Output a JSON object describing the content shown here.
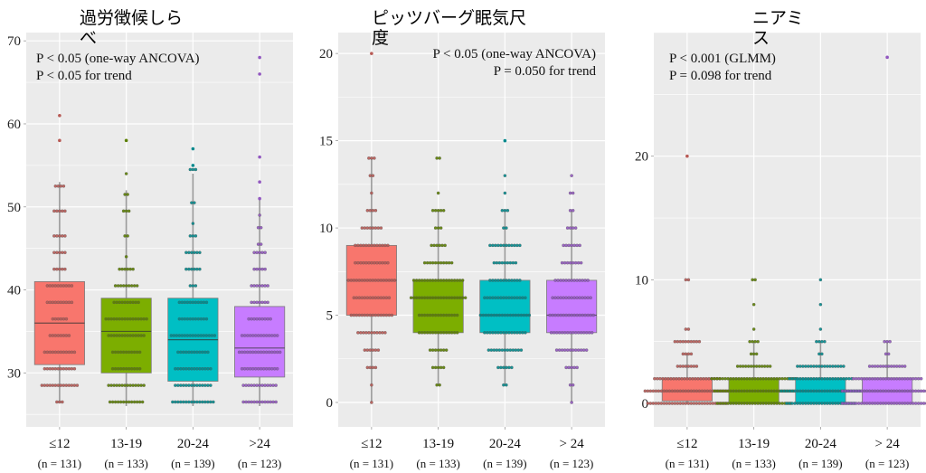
{
  "figure": {
    "x_categories": [
      "≤12",
      "13-19",
      "20-24",
      ">24"
    ],
    "x_categories_alt": [
      "≤12",
      "13-19",
      "20-24",
      "> 24"
    ],
    "group_n": [
      "(n = 131)",
      "(n = 133)",
      "(n = 139)",
      "(n = 123)"
    ],
    "colors": [
      "#F8766D",
      "#7CAE00",
      "#00BFC4",
      "#C77CFF"
    ],
    "dot_colors": [
      "#b85a55",
      "#5c8000",
      "#00898d",
      "#9258c0"
    ]
  },
  "chart_data": [
    {
      "type": "box",
      "title_lines": [
        "過労徴候しら",
        "べ"
      ],
      "annotations": [
        "P < 0.05 (one-way ANCOVA)",
        "P < 0.05 for trend"
      ],
      "annotation_align": "left",
      "categories": [
        "≤12",
        "13-19",
        "20-24",
        ">24"
      ],
      "ylim": [
        23.5,
        71
      ],
      "yticks": [
        30,
        40,
        50,
        60,
        70
      ],
      "tick_labels": [
        "30",
        "40",
        "50",
        "60",
        "70"
      ],
      "grid": true,
      "series": [
        {
          "name": "≤12",
          "n": 131,
          "q1": 31,
          "median": 36,
          "q3": 41,
          "whisker_low": 26.5,
          "whisker_high": 53,
          "dot_rows": [
            [
              26.5,
              3
            ],
            [
              28.5,
              14
            ],
            [
              30.5,
              12
            ],
            [
              32.5,
              12
            ],
            [
              34.5,
              8
            ],
            [
              36.5,
              6
            ],
            [
              38.5,
              10
            ],
            [
              40.5,
              10
            ],
            [
              42.5,
              5
            ],
            [
              44.5,
              5
            ],
            [
              46.5,
              5
            ],
            [
              49.5,
              5
            ],
            [
              52.5,
              4
            ]
          ],
          "outliers": [
            58,
            61
          ]
        },
        {
          "name": "13-19",
          "n": 133,
          "q1": 30,
          "median": 35,
          "q3": 39,
          "whisker_low": 26,
          "whisker_high": 52,
          "dot_rows": [
            [
              26.5,
              13
            ],
            [
              28.5,
              14
            ],
            [
              30.5,
              11
            ],
            [
              32.5,
              11
            ],
            [
              34.5,
              14
            ],
            [
              36.5,
              16
            ],
            [
              38.5,
              10
            ],
            [
              40.5,
              9
            ],
            [
              42.5,
              6
            ],
            [
              44,
              1
            ],
            [
              46.5,
              2
            ],
            [
              49.5,
              3
            ],
            [
              51.5,
              2
            ],
            [
              54,
              1
            ]
          ],
          "outliers": [
            58
          ]
        },
        {
          "name": "20-24",
          "n": 139,
          "q1": 29,
          "median": 34,
          "q3": 39,
          "whisker_low": 26,
          "whisker_high": 54,
          "dot_rows": [
            [
              26.5,
              16
            ],
            [
              28.5,
              14
            ],
            [
              30.5,
              14
            ],
            [
              32.5,
              12
            ],
            [
              34.5,
              17
            ],
            [
              36.5,
              11
            ],
            [
              38.5,
              11
            ],
            [
              40.5,
              3
            ],
            [
              42.5,
              6
            ],
            [
              44.5,
              6
            ],
            [
              46.5,
              3
            ],
            [
              48,
              1
            ],
            [
              50.5,
              2
            ],
            [
              54.5,
              3
            ]
          ],
          "outliers": [
            55,
            57
          ]
        },
        {
          "name": ">24",
          "n": 123,
          "q1": 29.5,
          "median": 33,
          "q3": 38,
          "whisker_low": 26,
          "whisker_high": 51,
          "dot_rows": [
            [
              26.5,
              13
            ],
            [
              28.5,
              13
            ],
            [
              30.5,
              14
            ],
            [
              32.5,
              16
            ],
            [
              34.5,
              14
            ],
            [
              36.5,
              9
            ],
            [
              38.5,
              7
            ],
            [
              40.5,
              7
            ],
            [
              42.5,
              5
            ],
            [
              44.5,
              5
            ],
            [
              45.5,
              2
            ],
            [
              47.5,
              2
            ],
            [
              49,
              1
            ]
          ],
          "outliers": [
            51,
            53,
            56,
            66,
            68
          ]
        }
      ]
    },
    {
      "type": "box",
      "title_lines": [
        "ピッツバーグ眠気尺",
        "度"
      ],
      "annotations": [
        "P < 0.05 (one-way ANCOVA)",
        "P = 0.050 for trend"
      ],
      "annotation_align": "right",
      "categories": [
        "≤12",
        "13-19",
        "20-24",
        "> 24"
      ],
      "ylim": [
        -1.4,
        21.2
      ],
      "yticks": [
        0,
        5,
        10,
        15,
        20
      ],
      "tick_labels": [
        "0",
        "5",
        "10",
        "15",
        "20"
      ],
      "grid": true,
      "series": [
        {
          "name": "≤12",
          "n": 131,
          "q1": 5,
          "median": 7,
          "q3": 9,
          "whisker_low": 0,
          "whisker_high": 14,
          "dot_rows": [
            [
              0,
              1
            ],
            [
              1,
              1
            ],
            [
              2,
              4
            ],
            [
              3,
              6
            ],
            [
              4,
              11
            ],
            [
              5,
              16
            ],
            [
              6,
              14
            ],
            [
              7,
              18
            ],
            [
              8,
              13
            ],
            [
              9,
              13
            ],
            [
              10,
              8
            ],
            [
              11,
              4
            ],
            [
              12,
              1
            ],
            [
              13,
              2
            ],
            [
              14,
              3
            ]
          ],
          "outliers": [
            20
          ]
        },
        {
          "name": "13-19",
          "n": 133,
          "q1": 4,
          "median": 6,
          "q3": 7,
          "whisker_low": 1,
          "whisker_high": 11,
          "dot_rows": [
            [
              1,
              2
            ],
            [
              2,
              5
            ],
            [
              3,
              7
            ],
            [
              4,
              15
            ],
            [
              5,
              15
            ],
            [
              6,
              21
            ],
            [
              7,
              19
            ],
            [
              8,
              11
            ],
            [
              9,
              6
            ],
            [
              10,
              3
            ],
            [
              11,
              5
            ],
            [
              12,
              1
            ],
            [
              14,
              2
            ]
          ],
          "outliers": []
        },
        {
          "name": "20-24",
          "n": 139,
          "q1": 4,
          "median": 5,
          "q3": 7,
          "whisker_low": 1,
          "whisker_high": 11,
          "dot_rows": [
            [
              1,
              2
            ],
            [
              2,
              6
            ],
            [
              3,
              13
            ],
            [
              4,
              16
            ],
            [
              5,
              19
            ],
            [
              6,
              16
            ],
            [
              7,
              12
            ],
            [
              8,
              9
            ],
            [
              9,
              12
            ],
            [
              10,
              2
            ],
            [
              11,
              3
            ],
            [
              12,
              1
            ],
            [
              13,
              1
            ]
          ],
          "outliers": [
            15
          ]
        },
        {
          "name": "> 24",
          "n": 123,
          "q1": 4,
          "median": 5,
          "q3": 7,
          "whisker_low": 0,
          "whisker_high": 11,
          "dot_rows": [
            [
              0,
              1
            ],
            [
              1,
              2
            ],
            [
              2,
              5
            ],
            [
              3,
              12
            ],
            [
              4,
              16
            ],
            [
              5,
              17
            ],
            [
              6,
              15
            ],
            [
              7,
              13
            ],
            [
              8,
              8
            ],
            [
              9,
              7
            ],
            [
              10,
              4
            ],
            [
              11,
              2
            ],
            [
              12,
              2
            ],
            [
              13,
              1
            ]
          ],
          "outliers": []
        }
      ]
    },
    {
      "type": "box",
      "title_lines": [
        "ニアミ",
        "ス"
      ],
      "annotations": [
        "P < 0.001 (GLMM)",
        "P = 0.098 for trend"
      ],
      "annotation_align": "left",
      "categories": [
        "≤12",
        "13-19",
        "20-24",
        "> 24"
      ],
      "ylim": [
        -1.9,
        30
      ],
      "yticks": [
        0,
        10,
        20
      ],
      "tick_labels": [
        "0",
        "10",
        "20"
      ],
      "grid": true,
      "series": [
        {
          "name": "≤12",
          "n": 131,
          "q1": 0.2,
          "median": 1,
          "q3": 2,
          "whisker_low": 0,
          "whisker_high": 4,
          "dot_rows": [
            [
              0,
              30
            ],
            [
              1,
              32
            ],
            [
              2,
              25
            ],
            [
              3,
              8
            ],
            [
              4,
              4
            ],
            [
              5,
              10
            ],
            [
              6,
              2
            ],
            [
              10,
              2
            ]
          ],
          "outliers": [
            20
          ]
        },
        {
          "name": "13-19",
          "n": 133,
          "q1": 0,
          "median": 1,
          "q3": 2,
          "whisker_low": 0,
          "whisker_high": 5,
          "dot_rows": [
            [
              0,
              28
            ],
            [
              1,
              30
            ],
            [
              2,
              32
            ],
            [
              3,
              13
            ],
            [
              4,
              3
            ],
            [
              5,
              4
            ],
            [
              6,
              1
            ],
            [
              8,
              1
            ],
            [
              10,
              2
            ]
          ],
          "outliers": []
        },
        {
          "name": "20-24",
          "n": 139,
          "q1": 0,
          "median": 1,
          "q3": 2,
          "whisker_low": 0,
          "whisker_high": 5,
          "dot_rows": [
            [
              0,
              26
            ],
            [
              1,
              30
            ],
            [
              2,
              24
            ],
            [
              3,
              18
            ],
            [
              4,
              2
            ],
            [
              5,
              4
            ],
            [
              6,
              1
            ],
            [
              8,
              1
            ],
            [
              10,
              1
            ]
          ],
          "outliers": []
        },
        {
          "name": "> 24",
          "n": 123,
          "q1": 0,
          "median": 1,
          "q3": 2,
          "whisker_low": 0,
          "whisker_high": 5,
          "dot_rows": [
            [
              0,
              34
            ],
            [
              1,
              34
            ],
            [
              2,
              26
            ],
            [
              3,
              14
            ],
            [
              4,
              2
            ],
            [
              5,
              3
            ]
          ],
          "outliers": [
            28
          ]
        }
      ]
    }
  ]
}
